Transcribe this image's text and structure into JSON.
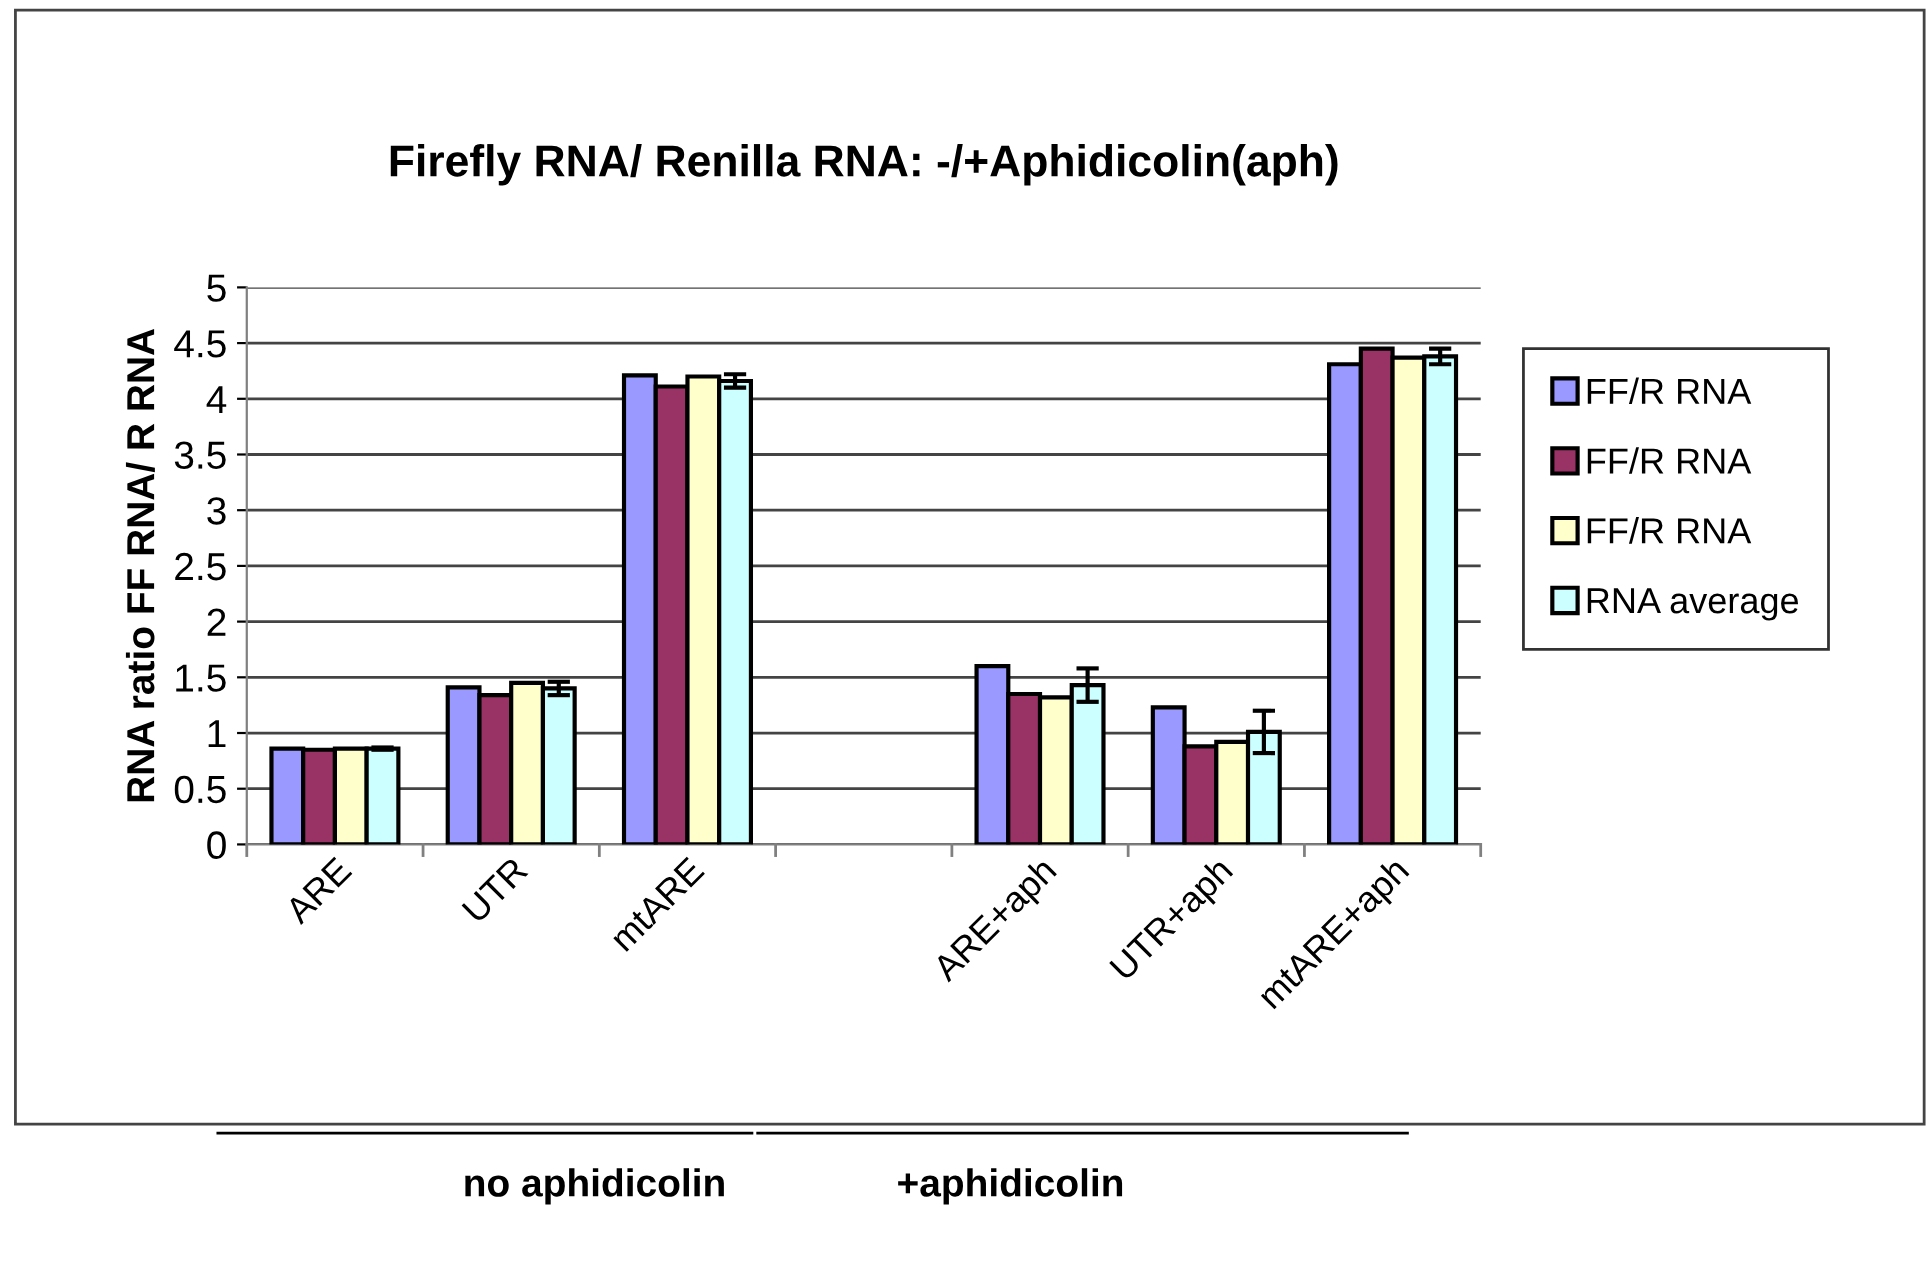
{
  "chart_data": {
    "type": "bar",
    "title": "Firefly RNA/ Renilla RNA: -/+Aphidicolin(aph)",
    "ylabel": "RNA ratio FF RNA/ R RNA",
    "categories": [
      "ARE",
      "UTR",
      "mtARE",
      null,
      "ARE+aph",
      "UTR+aph",
      "mtARE+aph"
    ],
    "series": [
      {
        "name": "FF/R RNA",
        "color": "#9999ff",
        "values": [
          0.86,
          1.41,
          4.21,
          null,
          1.6,
          1.23,
          4.31
        ]
      },
      {
        "name": "FF/R RNA",
        "color": "#993366",
        "values": [
          0.85,
          1.34,
          4.11,
          null,
          1.35,
          0.88,
          4.45
        ]
      },
      {
        "name": "FF/R RNA",
        "color": "#ffffcc",
        "values": [
          0.86,
          1.45,
          4.2,
          null,
          1.32,
          0.92,
          4.37
        ]
      },
      {
        "name": "RNA average",
        "color": "#ccffff",
        "values": [
          0.86,
          1.4,
          4.16,
          null,
          1.43,
          1.01,
          4.38
        ],
        "errors": [
          0.01,
          0.06,
          0.06,
          null,
          0.15,
          0.19,
          0.07
        ]
      }
    ],
    "ylim": [
      0,
      5
    ],
    "yticks": [
      0,
      0.5,
      1,
      1.5,
      2,
      2.5,
      3,
      3.5,
      4,
      4.5,
      5
    ],
    "grid": "y",
    "legend": "right",
    "annotations": [
      "no aphidicolin",
      "+aphidicolin"
    ]
  }
}
